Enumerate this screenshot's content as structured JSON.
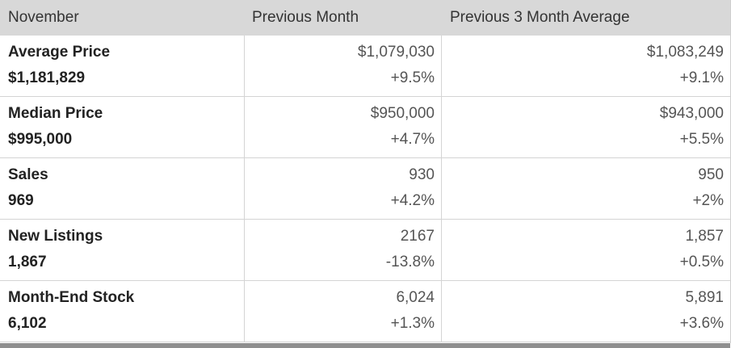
{
  "table": {
    "header": [
      "November",
      "Previous Month",
      "Previous 3 Month Average"
    ],
    "rows": [
      {
        "label": "Average Price",
        "value": "$1,181,829",
        "previous": [
          "$1,079,030",
          "+9.5%"
        ],
        "average": [
          "$1,083,249",
          "+9.1%"
        ]
      },
      {
        "label": "Median Price",
        "value": "$995,000",
        "previous": [
          "$950,000",
          "+4.7%"
        ],
        "average": [
          "$943,000",
          "+5.5%"
        ]
      },
      {
        "label": "Sales",
        "value": "969",
        "previous": [
          "930",
          "+4.2%"
        ],
        "average": [
          "950",
          "+2%"
        ]
      },
      {
        "label": "New Listings",
        "value": "1,867",
        "previous": [
          "2167",
          "-13.8%"
        ],
        "average": [
          "1,857",
          "+0.5%"
        ]
      },
      {
        "label": "Month-End Stock",
        "value": "6,102",
        "previous": [
          "6,024",
          "+1.3%"
        ],
        "average": [
          "5,891",
          "+3.6%"
        ]
      }
    ]
  }
}
